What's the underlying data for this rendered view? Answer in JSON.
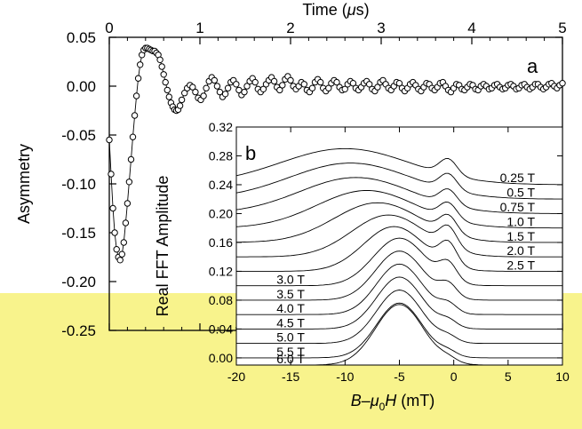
{
  "highlight_color": "#f8f38c",
  "chart_data": [
    {
      "panel": "a",
      "type": "scatter",
      "panel_label": "a",
      "xlabel_parts": [
        "Time (",
        "μ",
        "s)"
      ],
      "ylabel": "Asymmetry",
      "xlim": [
        0,
        5
      ],
      "ylim": [
        -0.25,
        0.05
      ],
      "x_ticks": [
        0,
        1,
        2,
        3,
        4,
        5
      ],
      "x_tick_labels": [
        "0",
        "1",
        "2",
        "3",
        "4",
        "5"
      ],
      "y_ticks": [
        0.05,
        0.0,
        -0.05,
        -0.1,
        -0.15,
        -0.2,
        -0.25
      ],
      "y_tick_labels": [
        "0.05",
        "0.00",
        "-0.05",
        "-0.10",
        "-0.15",
        "-0.20",
        "-0.25"
      ],
      "grid": false,
      "series": [
        {
          "marker": "open-circle",
          "connected": true,
          "points": [
            [
              0.0,
              -0.055
            ],
            [
              0.02,
              -0.09
            ],
            [
              0.04,
              -0.125
            ],
            [
              0.06,
              -0.15
            ],
            [
              0.08,
              -0.167
            ],
            [
              0.1,
              -0.175
            ],
            [
              0.12,
              -0.178
            ],
            [
              0.14,
              -0.172
            ],
            [
              0.16,
              -0.16
            ],
            [
              0.18,
              -0.14
            ],
            [
              0.2,
              -0.12
            ],
            [
              0.22,
              -0.098
            ],
            [
              0.24,
              -0.075
            ],
            [
              0.26,
              -0.052
            ],
            [
              0.28,
              -0.03
            ],
            [
              0.3,
              -0.01
            ],
            [
              0.32,
              0.008
            ],
            [
              0.34,
              0.022
            ],
            [
              0.36,
              0.032
            ],
            [
              0.38,
              0.037
            ],
            [
              0.4,
              0.039
            ],
            [
              0.42,
              0.039
            ],
            [
              0.44,
              0.038
            ],
            [
              0.46,
              0.037
            ],
            [
              0.48,
              0.036
            ],
            [
              0.5,
              0.036
            ],
            [
              0.52,
              0.034
            ],
            [
              0.54,
              0.032
            ],
            [
              0.56,
              0.027
            ],
            [
              0.58,
              0.02
            ],
            [
              0.6,
              0.012
            ],
            [
              0.62,
              0.004
            ],
            [
              0.64,
              -0.004
            ],
            [
              0.66,
              -0.011
            ],
            [
              0.68,
              -0.017
            ],
            [
              0.7,
              -0.021
            ],
            [
              0.72,
              -0.024
            ],
            [
              0.74,
              -0.025
            ],
            [
              0.76,
              -0.024
            ],
            [
              0.78,
              -0.02
            ],
            [
              0.8,
              -0.014
            ],
            [
              0.83,
              -0.007
            ],
            [
              0.86,
              -0.002
            ],
            [
              0.89,
              0.001
            ],
            [
              0.92,
              -0.001
            ],
            [
              0.95,
              -0.006
            ],
            [
              0.98,
              -0.012
            ],
            [
              1.01,
              -0.014
            ],
            [
              1.04,
              -0.01
            ],
            [
              1.07,
              -0.002
            ],
            [
              1.1,
              0.005
            ],
            [
              1.13,
              0.009
            ],
            [
              1.16,
              0.006
            ],
            [
              1.19,
              0.0
            ],
            [
              1.22,
              -0.006
            ],
            [
              1.25,
              -0.011
            ],
            [
              1.28,
              -0.008
            ],
            [
              1.31,
              -0.002
            ],
            [
              1.34,
              0.004
            ],
            [
              1.37,
              0.006
            ],
            [
              1.4,
              0.002
            ],
            [
              1.43,
              -0.004
            ],
            [
              1.46,
              -0.009
            ],
            [
              1.49,
              -0.006
            ],
            [
              1.52,
              0.0
            ],
            [
              1.55,
              0.005
            ],
            [
              1.58,
              0.008
            ],
            [
              1.61,
              0.004
            ],
            [
              1.64,
              -0.003
            ],
            [
              1.67,
              -0.006
            ],
            [
              1.7,
              -0.003
            ],
            [
              1.73,
              0.002
            ],
            [
              1.76,
              0.006
            ],
            [
              1.79,
              0.009
            ],
            [
              1.82,
              0.005
            ],
            [
              1.85,
              -0.001
            ],
            [
              1.88,
              -0.004
            ],
            [
              1.91,
              0.001
            ],
            [
              1.94,
              0.007
            ],
            [
              1.97,
              0.01
            ],
            [
              2.0,
              0.006
            ],
            [
              2.03,
              0.0
            ],
            [
              2.06,
              -0.003
            ],
            [
              2.09,
              0.0
            ],
            [
              2.12,
              0.004
            ],
            [
              2.15,
              0.002
            ],
            [
              2.18,
              -0.004
            ],
            [
              2.21,
              -0.006
            ],
            [
              2.24,
              -0.002
            ],
            [
              2.27,
              0.004
            ],
            [
              2.3,
              0.007
            ],
            [
              2.33,
              0.004
            ],
            [
              2.36,
              -0.002
            ],
            [
              2.39,
              -0.005
            ],
            [
              2.42,
              -0.002
            ],
            [
              2.45,
              0.003
            ],
            [
              2.48,
              0.006
            ],
            [
              2.51,
              0.004
            ],
            [
              2.54,
              -0.001
            ],
            [
              2.57,
              -0.004
            ],
            [
              2.6,
              -0.003
            ],
            [
              2.63,
              0.002
            ],
            [
              2.66,
              0.005
            ],
            [
              2.69,
              0.003
            ],
            [
              2.72,
              -0.002
            ],
            [
              2.75,
              -0.004
            ],
            [
              2.78,
              -0.001
            ],
            [
              2.81,
              0.003
            ],
            [
              2.84,
              0.005
            ],
            [
              2.87,
              0.002
            ],
            [
              2.9,
              -0.003
            ],
            [
              2.93,
              -0.005
            ],
            [
              2.96,
              -0.001
            ],
            [
              2.99,
              0.004
            ],
            [
              3.02,
              0.006
            ],
            [
              3.05,
              0.002
            ],
            [
              3.08,
              -0.002
            ],
            [
              3.11,
              -0.004
            ],
            [
              3.14,
              0.0
            ],
            [
              3.17,
              0.004
            ],
            [
              3.2,
              0.003
            ],
            [
              3.23,
              -0.002
            ],
            [
              3.26,
              -0.005
            ],
            [
              3.29,
              -0.002
            ],
            [
              3.32,
              0.002
            ],
            [
              3.35,
              0.004
            ],
            [
              3.38,
              0.001
            ],
            [
              3.41,
              -0.003
            ],
            [
              3.44,
              -0.005
            ],
            [
              3.47,
              -0.001
            ],
            [
              3.5,
              0.003
            ],
            [
              3.53,
              0.002
            ],
            [
              3.56,
              -0.002
            ],
            [
              3.59,
              -0.004
            ],
            [
              3.62,
              -0.001
            ],
            [
              3.65,
              0.003
            ],
            [
              3.68,
              0.004
            ],
            [
              3.71,
              0.0
            ],
            [
              3.74,
              -0.004
            ],
            [
              3.77,
              -0.006
            ],
            [
              3.8,
              -0.002
            ],
            [
              3.83,
              0.002
            ],
            [
              3.86,
              0.001
            ],
            [
              3.89,
              -0.003
            ],
            [
              3.92,
              -0.004
            ],
            [
              3.95,
              -0.001
            ],
            [
              3.98,
              0.002
            ],
            [
              4.01,
              0.001
            ],
            [
              4.04,
              -0.003
            ],
            [
              4.07,
              -0.004
            ],
            [
              4.1,
              0.0
            ],
            [
              4.13,
              0.002
            ],
            [
              4.16,
              0.0
            ],
            [
              4.19,
              -0.003
            ],
            [
              4.22,
              -0.002
            ],
            [
              4.25,
              0.001
            ],
            [
              4.28,
              0.002
            ],
            [
              4.31,
              -0.001
            ],
            [
              4.34,
              -0.003
            ],
            [
              4.37,
              -0.002
            ],
            [
              4.4,
              0.001
            ],
            [
              4.43,
              0.002
            ],
            [
              4.46,
              0.0
            ],
            [
              4.49,
              -0.003
            ],
            [
              4.52,
              -0.002
            ],
            [
              4.55,
              0.001
            ],
            [
              4.58,
              0.002
            ],
            [
              4.61,
              -0.001
            ],
            [
              4.64,
              -0.003
            ],
            [
              4.67,
              -0.001
            ],
            [
              4.7,
              0.002
            ],
            [
              4.73,
              0.002
            ],
            [
              4.76,
              -0.001
            ],
            [
              4.79,
              -0.003
            ],
            [
              4.82,
              -0.001
            ],
            [
              4.85,
              0.002
            ],
            [
              4.88,
              0.003
            ],
            [
              4.91,
              0.0
            ],
            [
              4.94,
              -0.002
            ],
            [
              4.97,
              0.001
            ],
            [
              5.0,
              0.003
            ]
          ]
        }
      ]
    },
    {
      "panel": "b",
      "type": "line",
      "panel_label": "b",
      "xlabel_parts": [
        "B",
        "–",
        "μ",
        "0",
        "H",
        " (mT)"
      ],
      "ylabel": "Real FFT Amplitude",
      "xlim": [
        -20,
        10
      ],
      "ylim": [
        -0.01,
        0.32
      ],
      "x_ticks": [
        -20,
        -15,
        -10,
        -5,
        0,
        5,
        10
      ],
      "x_tick_labels": [
        "-20",
        "-15",
        "-10",
        "-5",
        "0",
        "5",
        "10"
      ],
      "y_ticks": [
        0.0,
        0.04,
        0.08,
        0.12,
        0.16,
        0.2,
        0.24,
        0.28,
        0.32
      ],
      "y_tick_labels": [
        "0.00",
        "0.04",
        "0.08",
        "0.12",
        "0.16",
        "0.20",
        "0.24",
        "0.28",
        "0.32"
      ],
      "grid": false,
      "series": [
        {
          "field": "0.25 T",
          "label": "0.25 T",
          "label_side": "right",
          "offset": 0.24,
          "broad_center": -10.0,
          "broad_width": 6.0,
          "broad_amp": 0.05,
          "narrow_amp": 0.022
        },
        {
          "field": "0.5 T",
          "label": "0.5 T",
          "label_side": "right",
          "offset": 0.22,
          "broad_center": -9.5,
          "broad_width": 5.6,
          "broad_amp": 0.05,
          "narrow_amp": 0.022
        },
        {
          "field": "0.75 T",
          "label": "0.75 T",
          "label_side": "right",
          "offset": 0.2,
          "broad_center": -9.0,
          "broad_width": 5.2,
          "broad_amp": 0.05,
          "narrow_amp": 0.021
        },
        {
          "field": "1.0 T",
          "label": "1.0 T",
          "label_side": "right",
          "offset": 0.18,
          "broad_center": -8.0,
          "broad_width": 4.6,
          "broad_amp": 0.052,
          "narrow_amp": 0.022
        },
        {
          "field": "1.5 T",
          "label": "1.5 T",
          "label_side": "right",
          "offset": 0.16,
          "broad_center": -7.0,
          "broad_width": 4.0,
          "broad_amp": 0.055,
          "narrow_amp": 0.024
        },
        {
          "field": "2.0 T",
          "label": "2.0 T",
          "label_side": "right",
          "offset": 0.14,
          "broad_center": -6.0,
          "broad_width": 3.4,
          "broad_amp": 0.058,
          "narrow_amp": 0.028
        },
        {
          "field": "2.5 T",
          "label": "2.5 T",
          "label_side": "right",
          "offset": 0.12,
          "broad_center": -5.5,
          "broad_width": 2.8,
          "broad_amp": 0.062,
          "narrow_amp": 0.03
        },
        {
          "field": "3.0 T",
          "label": "3.0 T",
          "label_side": "left",
          "offset": 0.1,
          "broad_center": -5.0,
          "broad_width": 2.4,
          "broad_amp": 0.066,
          "narrow_amp": 0.024
        },
        {
          "field": "3.5 T",
          "label": "3.5 T",
          "label_side": "left",
          "offset": 0.08,
          "broad_center": -5.0,
          "broad_width": 2.2,
          "broad_amp": 0.068,
          "narrow_amp": 0.018
        },
        {
          "field": "4.0 T",
          "label": "4.0 T",
          "label_side": "left",
          "offset": 0.06,
          "broad_center": -5.0,
          "broad_width": 2.1,
          "broad_amp": 0.07,
          "narrow_amp": 0.012
        },
        {
          "field": "4.5 T",
          "label": "4.5 T",
          "label_side": "left",
          "offset": 0.04,
          "broad_center": -5.0,
          "broad_width": 2.1,
          "broad_amp": 0.072,
          "narrow_amp": 0.009
        },
        {
          "field": "5.0 T",
          "label": "5.0 T",
          "label_side": "left",
          "offset": 0.02,
          "broad_center": -5.0,
          "broad_width": 2.1,
          "broad_amp": 0.074,
          "narrow_amp": 0.007
        },
        {
          "field": "5.5 T",
          "label": "5.5 T",
          "label_side": "left",
          "offset": 0.0,
          "broad_center": -5.0,
          "broad_width": 2.1,
          "broad_amp": 0.076,
          "narrow_amp": 0.006
        },
        {
          "field": "6.0 T",
          "label": "6.0 T",
          "label_side": "left",
          "offset": -0.01,
          "broad_center": -5.0,
          "broad_width": 2.2,
          "broad_amp": 0.084,
          "narrow_amp": 0.005
        }
      ],
      "narrow_center": -0.5,
      "narrow_width": 0.8
    }
  ]
}
